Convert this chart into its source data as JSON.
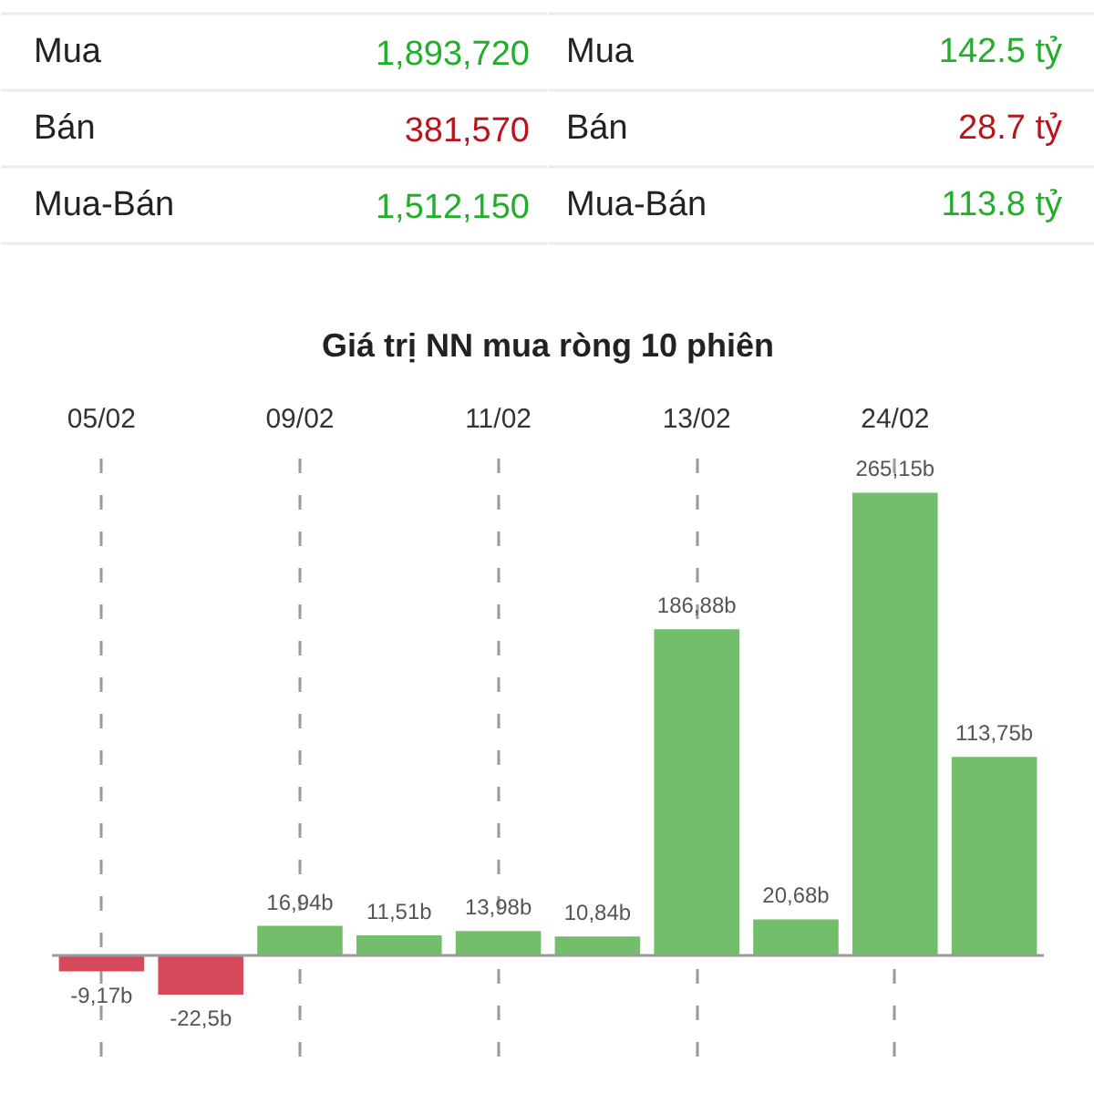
{
  "chart_data": [
    {
      "type": "other",
      "categories": [
        "Mua",
        "Bán",
        "Mua-Bán"
      ],
      "values": [
        1893720,
        381570,
        1512150
      ],
      "value_labels": [
        "1,893,720",
        "381,570",
        "1,512,150"
      ],
      "colors": [
        "#22ae2a",
        "#b8141c",
        "#22ae2a"
      ]
    },
    {
      "type": "other",
      "categories": [
        "Mua",
        "Bán",
        "Mua-Bán"
      ],
      "values": [
        142.5,
        28.7,
        113.8
      ],
      "value_labels": [
        "142.5 tỷ",
        "28.7 tỷ",
        "113.8 tỷ"
      ],
      "colors": [
        "#22ae2a",
        "#b8141c",
        "#22ae2a"
      ]
    },
    {
      "type": "bar",
      "title": "Giá trị NN mua ròng 10 phiên",
      "categories": [
        "05/02",
        null,
        "09/02",
        null,
        "11/02",
        null,
        "13/02",
        null,
        "24/02",
        null
      ],
      "values": [
        -9.17,
        -22.5,
        16.94,
        11.51,
        13.98,
        10.84,
        186.88,
        20.68,
        265.15,
        113.75
      ],
      "colors": [
        "#d6495a",
        "#d6495a",
        "#72be6a",
        "#72be6a",
        "#72be6a",
        "#72be6a",
        "#72be6a",
        "#72be6a",
        "#72be6a",
        "#72be6a"
      ],
      "value_labels": [
        "-9,17b",
        "-22,5b",
        "16,94b",
        "11,51b",
        "13,98b",
        "10,84b",
        "186,88b",
        "20,68b",
        "265,15b",
        "113,75b"
      ],
      "ylim": [
        -58,
        292
      ],
      "grid": "x",
      "tick_labels": "x"
    }
  ]
}
